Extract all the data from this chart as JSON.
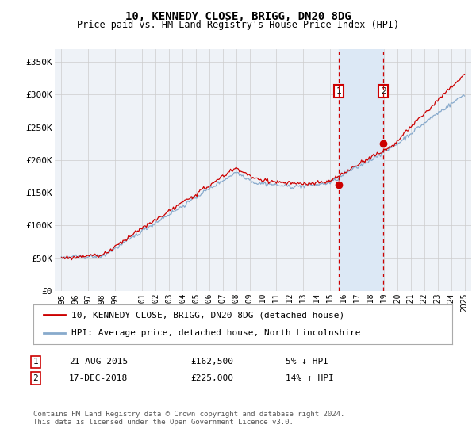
{
  "title": "10, KENNEDY CLOSE, BRIGG, DN20 8DG",
  "subtitle": "Price paid vs. HM Land Registry's House Price Index (HPI)",
  "ylabel_ticks": [
    "£0",
    "£50K",
    "£100K",
    "£150K",
    "£200K",
    "£250K",
    "£300K",
    "£350K"
  ],
  "ytick_values": [
    0,
    50000,
    100000,
    150000,
    200000,
    250000,
    300000,
    350000
  ],
  "ylim": [
    0,
    370000
  ],
  "xlim_start": 1994.5,
  "xlim_end": 2025.5,
  "marker1_x": 2015.64,
  "marker1_label": "1",
  "marker1_price": 162500,
  "marker2_x": 2018.96,
  "marker2_label": "2",
  "marker2_price": 225000,
  "sale_color": "#cc0000",
  "hpi_color": "#88aacc",
  "background_color": "#eef2f7",
  "shaded_region_color": "#dce8f5",
  "grid_color": "#cccccc",
  "legend_label_sale": "10, KENNEDY CLOSE, BRIGG, DN20 8DG (detached house)",
  "legend_label_hpi": "HPI: Average price, detached house, North Lincolnshire",
  "table_row1_num": "1",
  "table_row1_date": "21-AUG-2015",
  "table_row1_price": "£162,500",
  "table_row1_hpi": "5% ↓ HPI",
  "table_row2_num": "2",
  "table_row2_date": "17-DEC-2018",
  "table_row2_price": "£225,000",
  "table_row2_hpi": "14% ↑ HPI",
  "footer": "Contains HM Land Registry data © Crown copyright and database right 2024.\nThis data is licensed under the Open Government Licence v3.0.",
  "xtick_years": [
    1995,
    1996,
    1997,
    1998,
    1999,
    2001,
    2002,
    2003,
    2004,
    2005,
    2006,
    2007,
    2008,
    2009,
    2010,
    2011,
    2012,
    2013,
    2014,
    2015,
    2016,
    2017,
    2018,
    2019,
    2020,
    2021,
    2022,
    2023,
    2024,
    2025
  ]
}
